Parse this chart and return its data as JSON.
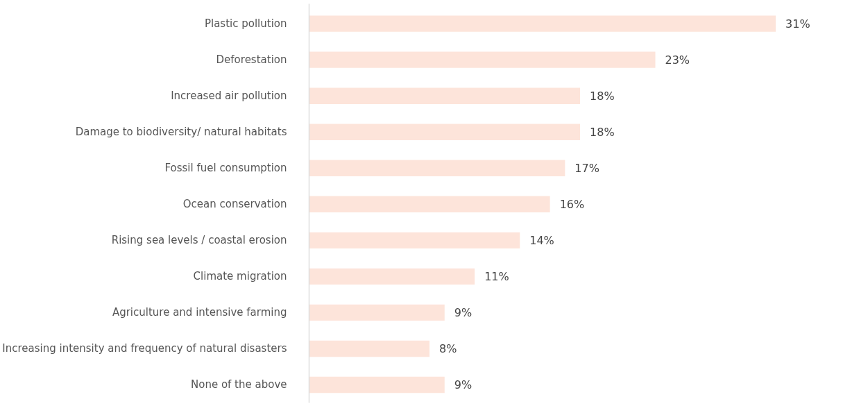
{
  "chart_data": {
    "type": "bar",
    "orientation": "horizontal",
    "categories": [
      "Plastic pollution",
      "Deforestation",
      "Increased air pollution",
      "Damage to biodiversity/ natural habitats",
      "Fossil fuel consumption",
      "Ocean conservation",
      "Rising sea levels / coastal erosion",
      "Climate migration",
      "Agriculture and intensive farming",
      "Increasing intensity and frequency of natural disasters",
      "None of the above"
    ],
    "values": [
      31,
      23,
      18,
      18,
      17,
      16,
      14,
      11,
      9,
      8,
      9
    ],
    "value_labels": [
      "31%",
      "23%",
      "18%",
      "18%",
      "17%",
      "16%",
      "14%",
      "11%",
      "9%",
      "8%",
      "9%"
    ],
    "color": "#fde4da",
    "grid": false
  }
}
